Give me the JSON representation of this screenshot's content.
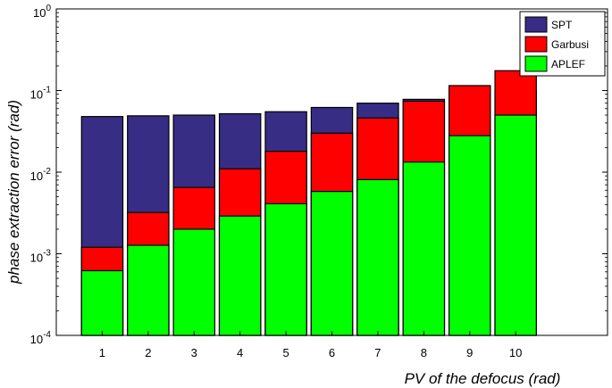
{
  "chart_data": {
    "type": "bar",
    "title": "",
    "xlabel": "PV of the defocus  (rad)",
    "ylabel": "phase extraction error  (rad)",
    "yscale": "log",
    "ylim": [
      0.0001,
      1
    ],
    "xlim": [
      0,
      12
    ],
    "y_ticks": [
      {
        "base": "10",
        "exp": "-4"
      },
      {
        "base": "10",
        "exp": "-3"
      },
      {
        "base": "10",
        "exp": "-2"
      },
      {
        "base": "10",
        "exp": "-1"
      },
      {
        "base": "10",
        "exp": "0"
      }
    ],
    "categories": [
      "1",
      "2",
      "3",
      "4",
      "5",
      "6",
      "7",
      "8",
      "9",
      "10"
    ],
    "bar_layout": "overlapped",
    "legend_position": "top-right",
    "grid": false,
    "series": [
      {
        "name": "SPT",
        "color": "#372d84",
        "values": [
          0.048,
          0.049,
          0.05,
          0.052,
          0.055,
          0.062,
          0.07,
          0.078,
          0.098,
          0.098
        ]
      },
      {
        "name": "Garbusi",
        "color": "#ff0000",
        "values": [
          0.0012,
          0.0032,
          0.0065,
          0.011,
          0.018,
          0.03,
          0.046,
          0.074,
          0.115,
          0.175
        ]
      },
      {
        "name": "APLEF",
        "color": "#00ff00",
        "values": [
          0.00062,
          0.00127,
          0.002,
          0.0029,
          0.0041,
          0.0058,
          0.0081,
          0.0133,
          0.028,
          0.05
        ]
      }
    ]
  }
}
